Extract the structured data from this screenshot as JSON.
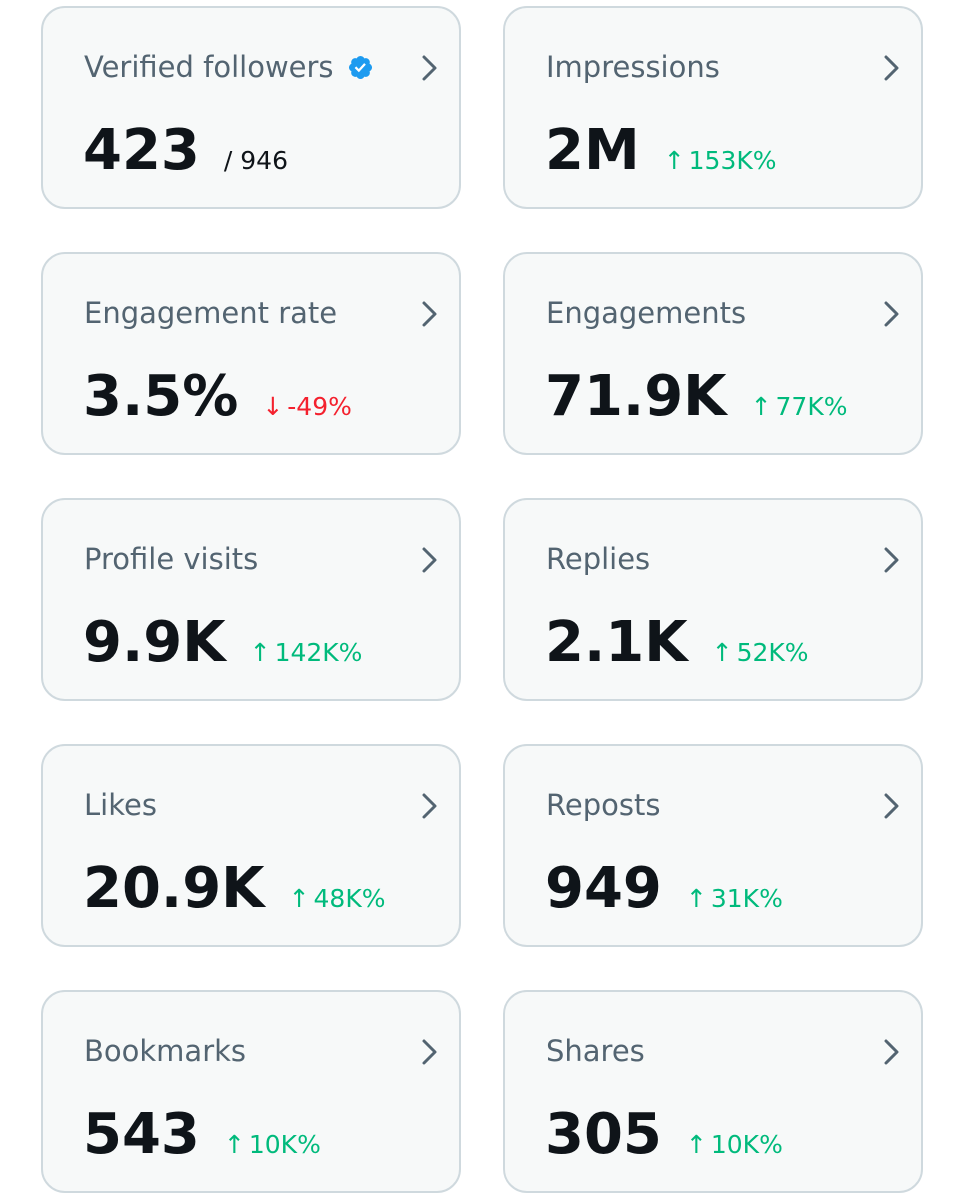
{
  "cards": [
    {
      "title": "Verified followers",
      "value": "423",
      "sub": "/ 946"
    },
    {
      "title": "Impressions",
      "value": "2M",
      "change": "153K%",
      "arrow": "↑"
    },
    {
      "title": "Engagement rate",
      "value": "3.5%",
      "change": "-49%",
      "arrow": "↓"
    },
    {
      "title": "Engagements",
      "value": "71.9K",
      "change": "77K%",
      "arrow": "↑"
    },
    {
      "title": "Profile visits",
      "value": "9.9K",
      "change": "142K%",
      "arrow": "↑"
    },
    {
      "title": "Replies",
      "value": "2.1K",
      "change": "52K%",
      "arrow": "↑"
    },
    {
      "title": "Likes",
      "value": "20.9K",
      "change": "48K%",
      "arrow": "↑"
    },
    {
      "title": "Reposts",
      "value": "949",
      "change": "31K%",
      "arrow": "↑"
    },
    {
      "title": "Bookmarks",
      "value": "543",
      "change": "10K%",
      "arrow": "↑"
    },
    {
      "title": "Shares",
      "value": "305",
      "change": "10K%",
      "arrow": "↑"
    }
  ],
  "colors": {
    "up": "#00ba7c",
    "down": "#f4212e",
    "verified": "#1d9bf0"
  }
}
